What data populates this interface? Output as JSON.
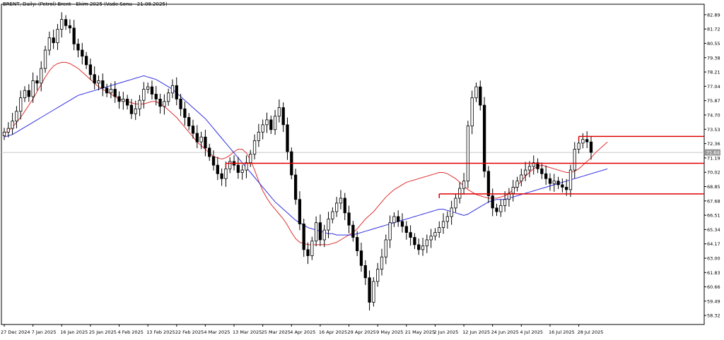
{
  "chart_data": {
    "type": "candlestick",
    "title": "BRENT, Daily:  (Petrol) Brent - Ekim 2025 (Vade Sonu - 21.08.2025)",
    "xlabel": "",
    "ylabel": "",
    "ylim": [
      57.7,
      83.4
    ],
    "last_price": 71.64,
    "price_label": "71.64",
    "yticks": [
      "82.89",
      "81.72",
      "80.55",
      "79.38",
      "78.21",
      "77.04",
      "75.87",
      "74.70",
      "73.53",
      "72.36",
      "71.19",
      "70.02",
      "68.85",
      "67.68",
      "66.51",
      "65.34",
      "64.17",
      "63.00",
      "61.83",
      "60.66",
      "59.49",
      "58.32"
    ],
    "xticks": [
      {
        "label": "27 Dec 2024",
        "i": 0
      },
      {
        "label": "7 Jan 2025",
        "i": 7
      },
      {
        "label": "16 Jan 2025",
        "i": 14
      },
      {
        "label": "25 Jan 2025",
        "i": 21
      },
      {
        "label": "4 Feb 2025",
        "i": 28
      },
      {
        "label": "13 Feb 2025",
        "i": 35
      },
      {
        "label": "22 Feb 2025",
        "i": 42
      },
      {
        "label": "4 Mar 2025",
        "i": 49
      },
      {
        "label": "13 Mar 2025",
        "i": 56
      },
      {
        "label": "25 Mar 2025",
        "i": 63
      },
      {
        "label": "4 Apr 2025",
        "i": 70
      },
      {
        "label": "16 Apr 2025",
        "i": 77
      },
      {
        "label": "29 Apr 2025",
        "i": 84
      },
      {
        "label": "9 May 2025",
        "i": 91
      },
      {
        "label": "21 May 2025",
        "i": 98
      },
      {
        "label": "2 Jun 2025",
        "i": 105
      },
      {
        "label": "12 Jun 2025",
        "i": 112
      },
      {
        "label": "24 Jun 2025",
        "i": 119
      },
      {
        "label": "4 Jul 2025",
        "i": 126
      },
      {
        "label": "16 Jul 2025",
        "i": 133
      },
      {
        "label": "28 Jul 2025",
        "i": 140
      }
    ],
    "n_bars": 144,
    "closes": [
      73.3,
      73.6,
      74.2,
      75.0,
      76.1,
      76.7,
      76.2,
      77.5,
      77.3,
      78.5,
      80.0,
      81.0,
      80.6,
      81.7,
      82.5,
      82.0,
      81.8,
      80.5,
      80.0,
      79.5,
      78.8,
      78.0,
      77.3,
      77.5,
      76.9,
      76.5,
      76.8,
      76.2,
      75.8,
      76.0,
      75.5,
      74.8,
      75.2,
      75.9,
      76.8,
      77.0,
      76.4,
      76.0,
      75.4,
      75.8,
      76.5,
      77.1,
      76.0,
      75.2,
      74.5,
      73.8,
      73.2,
      72.5,
      72.9,
      72.0,
      71.3,
      70.6,
      69.9,
      69.5,
      70.3,
      70.9,
      70.6,
      70.0,
      70.2,
      70.8,
      71.5,
      72.6,
      73.3,
      73.9,
      74.3,
      73.5,
      74.6,
      75.3,
      73.9,
      71.7,
      69.8,
      67.8,
      65.8,
      63.7,
      63.2,
      64.4,
      65.9,
      64.5,
      65.3,
      66.2,
      66.8,
      67.5,
      67.9,
      66.7,
      65.7,
      64.7,
      63.6,
      62.4,
      61.4,
      59.4,
      61.1,
      62.1,
      63.1,
      64.5,
      65.9,
      66.4,
      66.0,
      65.6,
      65.1,
      64.7,
      64.1,
      63.7,
      64.0,
      64.5,
      64.8,
      65.1,
      65.5,
      66.0,
      66.4,
      67.1,
      67.9,
      68.7,
      69.3,
      73.8,
      76.1,
      77.0,
      75.5,
      70.1,
      68.1,
      67.1,
      66.8,
      67.3,
      67.8,
      68.3,
      68.8,
      69.3,
      69.8,
      70.2,
      70.5,
      70.8,
      70.3,
      69.9,
      69.5,
      69.1,
      69.3,
      69.0,
      68.8,
      68.6,
      70.2,
      71.9,
      72.4,
      72.7,
      72.5,
      71.64
    ],
    "series": [
      {
        "name": "",
        "values": [
          73.2,
          73.4,
          73.7,
          74.1,
          74.5,
          75.0,
          75.5,
          76.0,
          76.6,
          77.2,
          77.8,
          78.3,
          78.7,
          78.9,
          79.0,
          79.0,
          78.9,
          78.7,
          78.5,
          78.2,
          77.9,
          77.6,
          77.3,
          77.0,
          76.8,
          76.6,
          76.4,
          76.2,
          76.0,
          75.9,
          75.8,
          75.7,
          75.6,
          75.6,
          75.6,
          75.7,
          75.8,
          75.8,
          75.6,
          75.4,
          75.1,
          74.8,
          74.5,
          74.1,
          73.7,
          73.3,
          72.9,
          72.5,
          72.2,
          71.9,
          71.6,
          71.3,
          71.2,
          71.1,
          71.2,
          71.4,
          71.7,
          71.9,
          71.9,
          71.6,
          71.0,
          70.2,
          69.3,
          68.5,
          67.9,
          67.4,
          67.0,
          66.6,
          66.2,
          65.7,
          65.1,
          64.6,
          64.3,
          64.2,
          64.1,
          64.1,
          64.1,
          64.1,
          64.1,
          64.1,
          64.2,
          64.3,
          64.5,
          64.7,
          64.9,
          65.1,
          65.4,
          65.8,
          66.2,
          66.5,
          66.8,
          67.2,
          67.6,
          68.0,
          68.3,
          68.6,
          68.8,
          69.0,
          69.2,
          69.3,
          69.4,
          69.5,
          69.6,
          69.7,
          69.8,
          69.9,
          70.0,
          70.0,
          69.9,
          69.7,
          69.5,
          69.2,
          68.9,
          68.6,
          68.4,
          68.2,
          68.1,
          68.0,
          67.9,
          67.9,
          67.9,
          68.0,
          68.1,
          68.3,
          68.6,
          68.9,
          69.3,
          69.7,
          70.0,
          70.3,
          70.5,
          70.6,
          70.5,
          70.4,
          70.3,
          70.2,
          70.1,
          70.0,
          70.0,
          70.1,
          70.3,
          70.6,
          70.9,
          71.2,
          71.6,
          71.9,
          72.2,
          72.5
        ]
      },
      {
        "name": "",
        "values": [
          72.9,
          73.0,
          73.1,
          73.3,
          73.5,
          73.7,
          73.9,
          74.1,
          74.3,
          74.5,
          74.7,
          74.9,
          75.1,
          75.3,
          75.5,
          75.7,
          75.9,
          76.1,
          76.3,
          76.4,
          76.5,
          76.6,
          76.7,
          76.8,
          76.9,
          77.0,
          77.1,
          77.2,
          77.3,
          77.4,
          77.5,
          77.6,
          77.7,
          77.8,
          77.9,
          77.8,
          77.7,
          77.6,
          77.4,
          77.2,
          77.0,
          76.8,
          76.5,
          76.2,
          75.9,
          75.6,
          75.3,
          75.0,
          74.7,
          74.4,
          74.0,
          73.6,
          73.2,
          72.8,
          72.4,
          72.0,
          71.6,
          71.2,
          70.8,
          70.4,
          70.0,
          69.6,
          69.2,
          68.8,
          68.4,
          68.0,
          67.6,
          67.3,
          67.0,
          66.7,
          66.4,
          66.1,
          65.9,
          65.7,
          65.5,
          65.4,
          65.3,
          65.2,
          65.1,
          65.0,
          65.0,
          64.9,
          64.9,
          64.9,
          64.9,
          64.9,
          65.0,
          65.1,
          65.2,
          65.3,
          65.4,
          65.5,
          65.6,
          65.7,
          65.8,
          65.9,
          66.0,
          66.1,
          66.2,
          66.3,
          66.4,
          66.5,
          66.6,
          66.7,
          66.8,
          66.9,
          67.0,
          67.0,
          66.9,
          66.8,
          66.7,
          66.6,
          66.5,
          66.6,
          66.8,
          67.0,
          67.2,
          67.4,
          67.6,
          67.7,
          67.8,
          67.8,
          67.8,
          67.9,
          68.0,
          68.1,
          68.2,
          68.3,
          68.4,
          68.5,
          68.6,
          68.7,
          68.8,
          68.9,
          69.0,
          69.1,
          69.2,
          69.3,
          69.4,
          69.5,
          69.6,
          69.7,
          69.8,
          69.9,
          70.0,
          70.1,
          70.2,
          70.3
        ]
      }
    ],
    "hlines": [
      {
        "y": 72.95,
        "from": 140
      },
      {
        "y": 70.75,
        "from": 54
      },
      {
        "y": 68.25,
        "from": 106
      }
    ],
    "colors": {
      "up": "#ffffff",
      "down": "#000000",
      "ma_fast": "#e03030",
      "ma_slow": "#3030e0",
      "level": "#e00000",
      "grid": "#c8c8c8"
    }
  }
}
